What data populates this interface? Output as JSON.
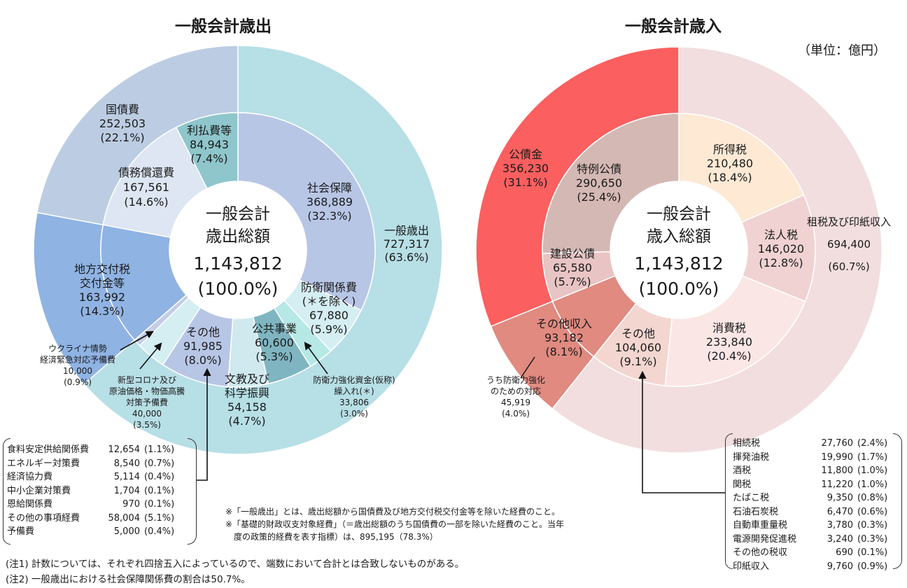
{
  "expenditure": {
    "title": "一般会計歳出",
    "center": [
      "一般会計",
      "歳出総額",
      "1,143,812",
      "(100.0%)"
    ],
    "chart_data": {
      "type": "pie",
      "outer": [
        {
          "name": "一般歳出",
          "value": 727317,
          "pct": 63.6,
          "color": "#b7dfe6"
        },
        {
          "name": "地方交付税交付金等",
          "value": 163992,
          "pct": 14.3,
          "color": "#8fb3e3"
        },
        {
          "name": "国債費",
          "value": 252503,
          "pct": 22.1,
          "color": "#bccde3"
        }
      ],
      "inner": [
        {
          "name": "社会保障",
          "value": 368889,
          "pct": 32.3,
          "color": "#b8c6e6"
        },
        {
          "name": "防衛関係費(＊を除く)",
          "value": 67880,
          "pct": 5.9,
          "color": "#d4eef2"
        },
        {
          "name": "防衛力強化資金(仮称)繰入れ(＊)",
          "value": 33806,
          "pct": 3.0,
          "color": "#b6e8e6"
        },
        {
          "name": "公共事業",
          "value": 60600,
          "pct": 5.3,
          "color": "#7fb5c1"
        },
        {
          "name": "文教及び科学振興",
          "value": 54158,
          "pct": 4.7,
          "color": "#cfe9ef"
        },
        {
          "name": "その他",
          "value": 91985,
          "pct": 8.0,
          "color": "#b8c6e6"
        },
        {
          "name": "新型コロナ及び原油価格・物価高騰対策予備費",
          "value": 40000,
          "pct": 3.5,
          "color": "#d4eef2"
        },
        {
          "name": "ウクライナ情勢経済緊急対応予備費",
          "value": 10000,
          "pct": 0.9,
          "color": "#c2cde8"
        },
        {
          "name": "地方交付税交付金等",
          "value": 163992,
          "pct": 14.3,
          "color": "#8fb3e3"
        },
        {
          "name": "債務償還費",
          "value": 167561,
          "pct": 14.6,
          "color": "#dde6f2"
        },
        {
          "name": "利払費等",
          "value": 84943,
          "pct": 7.4,
          "color": "#8ec6cc"
        }
      ]
    },
    "labels": {
      "kokusai": [
        "国債費",
        "252,503",
        "(22.1%)"
      ],
      "ribarai": [
        "利払費等",
        "84,943",
        "(7.4%)"
      ],
      "saimu": [
        "債務償還費",
        "167,561",
        "(14.6%)"
      ],
      "shakai": [
        "社会保障",
        "368,889",
        "(32.3%)"
      ],
      "ippan": [
        "一般歳出",
        "727,317",
        "(63.6%)"
      ],
      "chiho": [
        "地方交付税",
        "交付金等",
        "163,992",
        "(14.3%)"
      ],
      "boei": [
        "防衛関係費",
        "(＊を除く)",
        "67,880",
        "(5.9%)"
      ],
      "kokyo": [
        "公共事業",
        "60,600",
        "(5.3%)"
      ],
      "sonota": [
        "その他",
        "91,985",
        "(8.0%)"
      ],
      "bunkyo": [
        "文教及び",
        "科学振興",
        "54,158",
        "(4.7%)"
      ],
      "ukraine": [
        "ウクライナ情勢",
        "経済緊急対応予備費",
        "10,000",
        "(0.9%)"
      ],
      "corona": [
        "新型コロナ及び",
        "原油価格・物価高騰",
        "対策予備費",
        "40,000",
        "(3.5%)"
      ],
      "boeishikin": [
        "防衛力強化資金(仮称)",
        "繰入れ(＊)",
        "33,806",
        "(3.0%)"
      ]
    },
    "breakdown": [
      {
        "name": "食料安定供給関係費",
        "value": "12,654",
        "pct": "(1.1%)"
      },
      {
        "name": "エネルギー対策費",
        "value": "8,540",
        "pct": "(0.7%)"
      },
      {
        "name": "経済協力費",
        "value": "5,114",
        "pct": "(0.4%)"
      },
      {
        "name": "中小企業対策費",
        "value": "1,704",
        "pct": "(0.1%)"
      },
      {
        "name": "恩給関係費",
        "value": "970",
        "pct": "(0.1%)"
      },
      {
        "name": "その他の事項経費",
        "value": "58,004",
        "pct": "(5.1%)"
      },
      {
        "name": "予備費",
        "value": "5,000",
        "pct": "(0.4%)"
      }
    ]
  },
  "revenue": {
    "title": "一般会計歳入",
    "unit": "（単位：億円）",
    "center": [
      "一般会計",
      "歳入総額",
      "1,143,812",
      "(100.0%)"
    ],
    "chart_data": {
      "type": "pie",
      "outer": [
        {
          "name": "租税及び印紙収入",
          "value": 694400,
          "pct": 60.7,
          "color": "#f2dede"
        },
        {
          "name": "その他収入",
          "value": 93182,
          "pct": 8.1,
          "color": "#e08a80"
        },
        {
          "name": "公債金",
          "value": 356230,
          "pct": 31.1,
          "color": "#fb5f5f"
        }
      ],
      "inner": [
        {
          "name": "所得税",
          "value": 210480,
          "pct": 18.4,
          "color": "#fde9d4"
        },
        {
          "name": "法人税",
          "value": 146020,
          "pct": 12.8,
          "color": "#f0d2d2"
        },
        {
          "name": "消費税",
          "value": 233840,
          "pct": 20.4,
          "color": "#fbe6e6"
        },
        {
          "name": "その他",
          "value": 104060,
          "pct": 9.1,
          "color": "#f3d6d0"
        },
        {
          "name": "その他収入",
          "value": 93182,
          "pct": 8.1,
          "color": "#e08a80"
        },
        {
          "name": "建設公債",
          "value": 65580,
          "pct": 5.7,
          "color": "#e9c4c4"
        },
        {
          "name": "特例公債",
          "value": 290650,
          "pct": 25.4,
          "color": "#d4b8b4"
        }
      ]
    },
    "labels": {
      "kosai": [
        "公債金",
        "356,230",
        "(31.1%)"
      ],
      "tokurei": [
        "特例公債",
        "290,650",
        "(25.4%)"
      ],
      "shotoku": [
        "所得税",
        "210,480",
        "(18.4%)"
      ],
      "sozei": [
        "租税及び印紙収入",
        "694,400",
        "(60.7%)"
      ],
      "hojin": [
        "法人税",
        "146,020",
        "(12.8%)"
      ],
      "kensetsu": [
        "建設公債",
        "65,580",
        "(5.7%)"
      ],
      "sonotashunyu": [
        "その他収入",
        "93,182",
        "(8.1%)"
      ],
      "sonota": [
        "その他",
        "104,060",
        "(9.1%)"
      ],
      "shohi": [
        "消費税",
        "233,840",
        "(20.4%)"
      ],
      "boeitaio": [
        "うち防衛力強化",
        "のための対応",
        "45,919",
        "(4.0%)"
      ]
    },
    "breakdown": [
      {
        "name": "相続税",
        "value": "27,760",
        "pct": "(2.4%)"
      },
      {
        "name": "揮発油税",
        "value": "19,990",
        "pct": "(1.7%)"
      },
      {
        "name": "酒税",
        "value": "11,800",
        "pct": "(1.0%)"
      },
      {
        "name": "関税",
        "value": "11,220",
        "pct": "(1.0%)"
      },
      {
        "name": "たばこ税",
        "value": "9,350",
        "pct": "(0.8%)"
      },
      {
        "name": "石油石炭税",
        "value": "6,470",
        "pct": "(0.6%)"
      },
      {
        "name": "自動車重量税",
        "value": "3,780",
        "pct": "(0.3%)"
      },
      {
        "name": "電源開発促進税",
        "value": "3,240",
        "pct": "(0.3%)"
      },
      {
        "name": "その他の税収",
        "value": "690",
        "pct": "(0.1%)"
      },
      {
        "name": "印紙収入",
        "value": "9,760",
        "pct": "(0.9%)"
      }
    ]
  },
  "notes": [
    "※「一般歳出」とは、歳出総額から国債費及び地方交付税交付金等を除いた経費のこと。",
    "※「基礎的財政収支対象経費」（＝歳出総額のうち国債費の一部を除いた経費のこと。当年",
    "　度の政策的経費を表す指標）は、895,195（78.3%）"
  ],
  "footnotes": [
    "(注1) 計数については、それぞれ四捨五入によっているので、端数において合計とは合致しないものがある。",
    "(注2) 一般歳出における社会保障関係費の割合は50.7%。"
  ]
}
